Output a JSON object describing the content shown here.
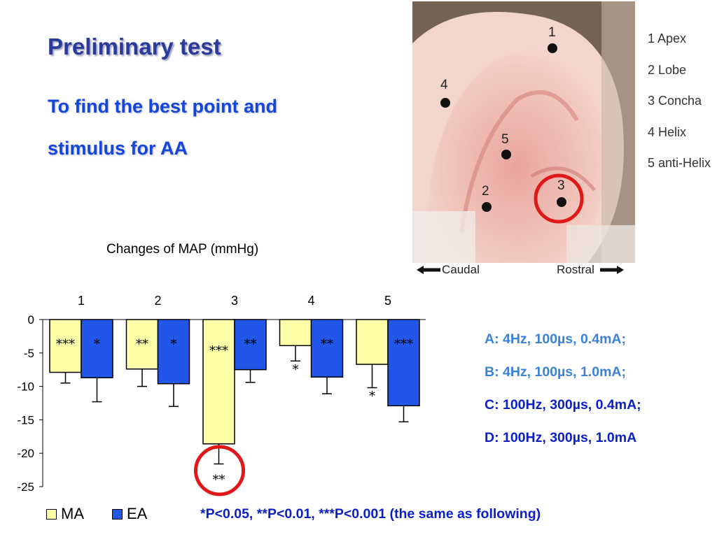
{
  "slide": {
    "title": "Preliminary test",
    "subtitle": "To find the best point and stimulus for AA",
    "photo_points": [
      {
        "num": "1",
        "name": "1 Apex"
      },
      {
        "num": "2",
        "name": "2 Lobe"
      },
      {
        "num": "3",
        "name": "3 Concha"
      },
      {
        "num": "4",
        "name": "4 Helix"
      },
      {
        "num": "5",
        "name": "5 anti-Helix"
      }
    ],
    "direction_left": "Caudal",
    "direction_right": "Rostral",
    "params": [
      {
        "text": "A: 4Hz, 100µs, 0.4mA;",
        "color": "#3b82d8"
      },
      {
        "text": "B: 4Hz, 100µs, 1.0mA;",
        "color": "#3b82d8"
      },
      {
        "text": "C: 100Hz, 300µs, 0.4mA;",
        "color": "#0a1fc8"
      },
      {
        "text": "D: 100Hz, 300µs, 1.0mA",
        "color": "#0a1fc8"
      }
    ],
    "footnote": "*P<0.05, **P<0.01, ***P<0.001 (the same as following)",
    "colors": {
      "ma": "#ffffa8",
      "ea": "#2156e8",
      "highlight": "#e01818"
    }
  },
  "chart_data": {
    "type": "bar",
    "title": "Changes of MAP (mmHg)",
    "categories": [
      "1",
      "2",
      "3",
      "4",
      "5"
    ],
    "ylim": [
      -25,
      0
    ],
    "yticks": [
      0,
      -5,
      -10,
      -15,
      -20,
      -25
    ],
    "series": [
      {
        "name": "MA",
        "values": [
          -7.9,
          -7.4,
          -18.6,
          -3.9,
          -6.7
        ],
        "errors": [
          1.6,
          2.6,
          3.0,
          2.3,
          3.5
        ],
        "labels": [
          "***",
          "**",
          "***",
          "*",
          "*"
        ]
      },
      {
        "name": "EA",
        "values": [
          -8.7,
          -9.6,
          -7.5,
          -8.6,
          -12.9
        ],
        "errors": [
          3.6,
          3.4,
          1.9,
          2.5,
          2.4
        ],
        "labels": [
          "*",
          "*",
          "**",
          "**",
          "***"
        ]
      }
    ],
    "highlight_label": "**",
    "legend": "bottom-left"
  }
}
